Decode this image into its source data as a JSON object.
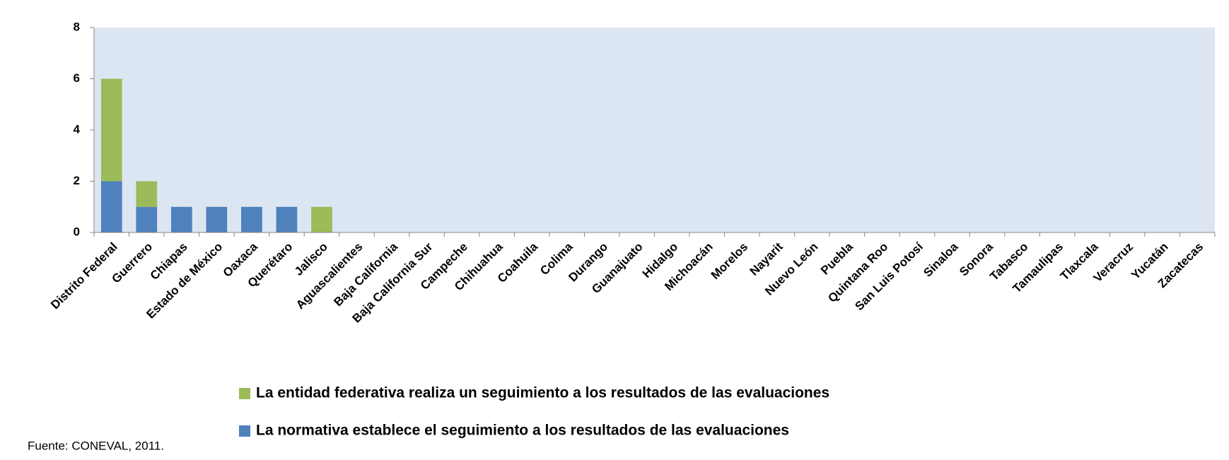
{
  "chart_data": {
    "type": "stacked_bar",
    "categories": [
      "Distrito Federal",
      "Guerrero",
      "Chiapas",
      "Estado de México",
      "Oaxaca",
      "Querétaro",
      "Jalisco",
      "Aguascalientes",
      "Baja California",
      "Baja California Sur",
      "Campeche",
      "Chihuahua",
      "Coahuila",
      "Colima",
      "Durango",
      "Guanajuato",
      "Hidalgo",
      "Michoacán",
      "Morelos",
      "Nayarit",
      "Nuevo León",
      "Puebla",
      "Quintana Roo",
      "San Luis Potosí",
      "Sinaloa",
      "Sonora",
      "Tabasco",
      "Tamaulipas",
      "Tlaxcala",
      "Veracruz",
      "Yucatán",
      "Zacatecas"
    ],
    "series": [
      {
        "name": "La normativa establece el seguimiento a los resultados de las evaluaciones",
        "color": "#4f81bd",
        "values": [
          2,
          1,
          1,
          1,
          1,
          1,
          0,
          0,
          0,
          0,
          0,
          0,
          0,
          0,
          0,
          0,
          0,
          0,
          0,
          0,
          0,
          0,
          0,
          0,
          0,
          0,
          0,
          0,
          0,
          0,
          0,
          0
        ]
      },
      {
        "name": "La entidad federativa realiza un seguimiento a los resultados de las evaluaciones",
        "color": "#9bbb59",
        "values": [
          4,
          1,
          0,
          0,
          0,
          0,
          1,
          0,
          0,
          0,
          0,
          0,
          0,
          0,
          0,
          0,
          0,
          0,
          0,
          0,
          0,
          0,
          0,
          0,
          0,
          0,
          0,
          0,
          0,
          0,
          0,
          0
        ]
      }
    ],
    "ylim": [
      0,
      8
    ],
    "yticks": [
      0,
      2,
      4,
      6,
      8
    ],
    "grid": false,
    "plot_background": "#dce6f2",
    "source": "Fuente: CONEVAL, 2011."
  }
}
